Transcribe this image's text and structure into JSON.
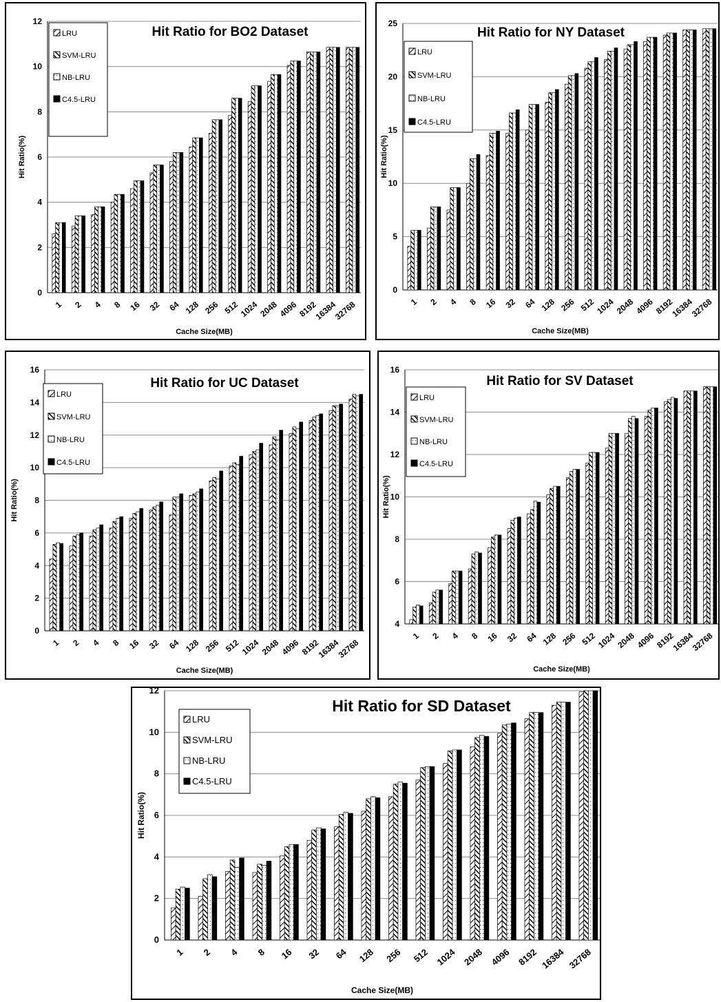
{
  "chart_data": [
    {
      "type": "bar",
      "title": "Hit Ratio for BO2 Dataset",
      "xlabel": "Cache Size(MB)",
      "ylabel": "Hit Ratio(%)",
      "ylim": [
        0,
        12
      ],
      "yticks": [
        0,
        2,
        4,
        6,
        8,
        10,
        12
      ],
      "grid": true,
      "legend": "top-left",
      "categories": [
        "1",
        "2",
        "4",
        "8",
        "16",
        "32",
        "64",
        "128",
        "256",
        "512",
        "1024",
        "2048",
        "4096",
        "8192",
        "16384",
        "32768"
      ],
      "series": [
        {
          "name": "LRU",
          "values": [
            2.6,
            2.95,
            3.45,
            4.0,
            4.6,
            5.3,
            5.8,
            6.45,
            7.05,
            7.85,
            8.45,
            9.35,
            10.05,
            10.65,
            10.85,
            10.85
          ]
        },
        {
          "name": "SVM-LRU",
          "values": [
            3.1,
            3.4,
            3.8,
            4.35,
            4.95,
            5.65,
            6.2,
            6.85,
            7.65,
            8.6,
            9.15,
            9.65,
            10.25,
            10.65,
            10.85,
            10.85
          ]
        },
        {
          "name": "NB-LRU",
          "values": [
            3.1,
            3.4,
            3.8,
            4.35,
            4.95,
            5.65,
            6.2,
            6.85,
            7.65,
            8.6,
            9.15,
            9.65,
            10.25,
            10.65,
            10.85,
            10.85
          ]
        },
        {
          "name": "C4.5-LRU",
          "values": [
            3.1,
            3.4,
            3.8,
            4.35,
            4.95,
            5.65,
            6.2,
            6.85,
            7.65,
            8.6,
            9.15,
            9.65,
            10.25,
            10.65,
            10.85,
            10.85
          ]
        }
      ]
    },
    {
      "type": "bar",
      "title": "Hit Ratio for NY Dataset",
      "xlabel": "Cache Size(MB)",
      "ylabel": "Hit Ratio(%)",
      "ylim": [
        0,
        25
      ],
      "yticks": [
        0,
        5,
        10,
        15,
        20,
        25
      ],
      "grid": true,
      "legend": "top-left",
      "categories": [
        "1",
        "2",
        "4",
        "8",
        "16",
        "32",
        "64",
        "128",
        "256",
        "512",
        "1024",
        "2048",
        "4096",
        "8192",
        "16384",
        "32768"
      ],
      "series": [
        {
          "name": "LRU",
          "values": [
            4.1,
            5.8,
            7.5,
            10.0,
            12.6,
            14.7,
            15.0,
            17.6,
            19.3,
            20.8,
            21.6,
            22.6,
            23.3,
            23.9,
            24.4,
            24.5
          ]
        },
        {
          "name": "SVM-LRU",
          "values": [
            5.6,
            7.8,
            9.6,
            12.3,
            14.7,
            16.6,
            17.4,
            18.5,
            20.1,
            21.4,
            22.4,
            23.0,
            23.7,
            24.1,
            24.4,
            24.5
          ]
        },
        {
          "name": "NB-LRU",
          "values": [
            5.6,
            7.8,
            9.6,
            12.3,
            14.7,
            16.6,
            17.4,
            18.5,
            20.1,
            21.4,
            22.4,
            23.0,
            23.7,
            24.1,
            24.4,
            24.5
          ]
        },
        {
          "name": "C4.5-LRU",
          "values": [
            5.6,
            7.8,
            9.6,
            12.7,
            14.9,
            16.9,
            17.4,
            18.8,
            20.3,
            21.8,
            22.7,
            23.3,
            23.7,
            24.1,
            24.4,
            24.5
          ]
        }
      ]
    },
    {
      "type": "bar",
      "title": "Hit Ratio for UC Dataset",
      "xlabel": "Cache Size(MB)",
      "ylabel": "Hit Ratio(%)",
      "ylim": [
        0,
        16
      ],
      "yticks": [
        0,
        2,
        4,
        6,
        8,
        10,
        12,
        14,
        16
      ],
      "grid": true,
      "legend": "top-left",
      "categories": [
        "1",
        "2",
        "4",
        "8",
        "16",
        "32",
        "64",
        "128",
        "256",
        "512",
        "1024",
        "2048",
        "4096",
        "8192",
        "16384",
        "32768"
      ],
      "series": [
        {
          "name": "LRU",
          "values": [
            4.4,
            5.2,
            5.8,
            6.3,
            6.9,
            7.4,
            7.1,
            8.3,
            9.2,
            10.1,
            10.8,
            11.4,
            12.1,
            12.9,
            13.5,
            14.2
          ]
        },
        {
          "name": "SVM-LRU",
          "values": [
            5.3,
            5.8,
            6.2,
            6.7,
            7.2,
            7.6,
            8.2,
            8.4,
            9.4,
            10.3,
            11.0,
            11.9,
            12.5,
            13.1,
            13.8,
            14.5
          ]
        },
        {
          "name": "NB-LRU",
          "values": [
            5.4,
            5.9,
            6.3,
            6.9,
            7.3,
            7.7,
            8.2,
            8.5,
            9.3,
            10.2,
            11.1,
            11.7,
            12.4,
            13.2,
            13.8,
            14.4
          ]
        },
        {
          "name": "C4.5-LRU",
          "values": [
            5.35,
            6.0,
            6.5,
            7.0,
            7.5,
            7.9,
            8.4,
            8.7,
            9.8,
            10.7,
            11.5,
            12.3,
            12.8,
            13.3,
            13.9,
            14.5
          ]
        }
      ]
    },
    {
      "type": "bar",
      "title": "Hit Ratio for SV Dataset",
      "xlabel": "Cache Size(MB)",
      "ylabel": "Hit Ratio(%)",
      "ylim": [
        4,
        16
      ],
      "yticks": [
        4,
        6,
        8,
        10,
        12,
        14,
        16
      ],
      "grid": true,
      "legend": "top-left",
      "categories": [
        "1",
        "2",
        "4",
        "8",
        "16",
        "32",
        "64",
        "128",
        "256",
        "512",
        "1024",
        "2048",
        "4096",
        "8192",
        "16384",
        "32768"
      ],
      "series": [
        {
          "name": "LRU",
          "values": [
            4.2,
            5.0,
            5.9,
            6.6,
            7.6,
            8.5,
            9.2,
            10.1,
            10.9,
            11.6,
            12.3,
            13.0,
            13.8,
            14.5,
            15.0,
            15.2
          ]
        },
        {
          "name": "SVM-LRU",
          "values": [
            4.8,
            5.5,
            6.5,
            7.3,
            8.1,
            8.9,
            9.4,
            10.4,
            11.2,
            12.1,
            13.0,
            13.7,
            14.1,
            14.6,
            15.0,
            15.2
          ]
        },
        {
          "name": "NB-LRU",
          "values": [
            4.9,
            5.6,
            6.5,
            7.4,
            8.2,
            9.0,
            9.8,
            10.5,
            11.3,
            12.1,
            13.0,
            13.8,
            14.2,
            14.7,
            15.0,
            15.2
          ]
        },
        {
          "name": "C4.5-LRU",
          "values": [
            4.85,
            5.6,
            6.5,
            7.35,
            8.2,
            9.05,
            9.75,
            10.5,
            11.3,
            12.1,
            13.0,
            13.7,
            14.2,
            14.65,
            15.0,
            15.2
          ]
        }
      ]
    },
    {
      "type": "bar",
      "title": "Hit Ratio for SD Dataset",
      "xlabel": "Cache Size(MB)",
      "ylabel": "Hit Ratio(%)",
      "ylim": [
        0,
        12
      ],
      "yticks": [
        0,
        2,
        4,
        6,
        8,
        10,
        12
      ],
      "grid": true,
      "legend": "top-left",
      "categories": [
        "1",
        "2",
        "4",
        "8",
        "16",
        "32",
        "64",
        "128",
        "256",
        "512",
        "1024",
        "2048",
        "4096",
        "8192",
        "16384",
        "32768"
      ],
      "series": [
        {
          "name": "LRU",
          "values": [
            1.55,
            2.1,
            3.3,
            3.25,
            4.05,
            4.8,
            5.45,
            6.2,
            6.9,
            7.7,
            8.5,
            9.3,
            9.95,
            10.65,
            11.3,
            11.95
          ]
        },
        {
          "name": "SVM-LRU",
          "values": [
            2.45,
            2.95,
            3.85,
            3.65,
            4.5,
            5.3,
            6.05,
            6.8,
            7.5,
            8.3,
            9.1,
            9.75,
            10.35,
            10.95,
            11.45,
            12.0
          ]
        },
        {
          "name": "NB-LRU",
          "values": [
            2.55,
            3.15,
            3.5,
            3.6,
            4.6,
            5.4,
            6.15,
            6.9,
            7.6,
            8.35,
            9.15,
            9.85,
            10.4,
            10.95,
            11.45,
            12.0
          ]
        },
        {
          "name": "C4.5-LRU",
          "values": [
            2.5,
            3.05,
            3.95,
            3.8,
            4.6,
            5.35,
            6.1,
            6.85,
            7.55,
            8.35,
            9.15,
            9.8,
            10.45,
            10.95,
            11.45,
            12.0
          ]
        }
      ]
    }
  ]
}
